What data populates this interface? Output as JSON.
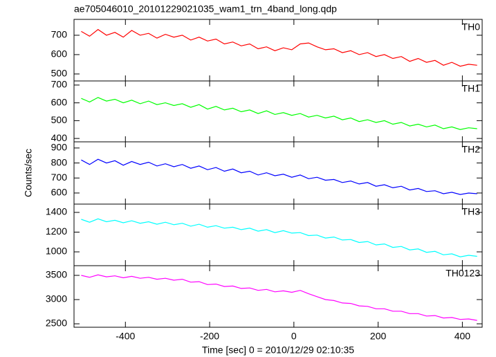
{
  "chart_data": {
    "type": "line",
    "title": "ae705046010_20101229021035_wam1_trn_4band_long.qdp",
    "xlabel": "Time [sec] 0 = 2010/12/29 02:10:35",
    "ylabel": "Counts/sec",
    "xlim": [
      -522,
      447
    ],
    "xticks": [
      -400,
      -200,
      0,
      200,
      400
    ],
    "x": [
      -505,
      -485,
      -465,
      -445,
      -425,
      -405,
      -385,
      -365,
      -345,
      -325,
      -305,
      -285,
      -265,
      -245,
      -225,
      -205,
      -185,
      -165,
      -145,
      -125,
      -105,
      -85,
      -65,
      -45,
      -25,
      -5,
      15,
      35,
      55,
      75,
      95,
      115,
      135,
      155,
      175,
      195,
      215,
      235,
      255,
      275,
      295,
      315,
      335,
      355,
      375,
      395,
      415,
      435
    ],
    "panels": [
      {
        "name": "TH0",
        "color": "#ff0000",
        "ylim": [
          464,
          782
        ],
        "yticks": [
          500,
          600,
          700
        ],
        "values": [
          720,
          695,
          730,
          700,
          715,
          690,
          725,
          700,
          710,
          685,
          705,
          690,
          700,
          675,
          690,
          670,
          680,
          655,
          665,
          645,
          655,
          630,
          640,
          620,
          635,
          625,
          655,
          660,
          640,
          625,
          630,
          610,
          620,
          600,
          610,
          590,
          600,
          580,
          590,
          565,
          580,
          560,
          570,
          545,
          560,
          540,
          550,
          545
        ]
      },
      {
        "name": "TH1",
        "color": "#00ff00",
        "ylim": [
          381,
          723
        ],
        "yticks": [
          400,
          500,
          600,
          700
        ],
        "values": [
          625,
          605,
          630,
          610,
          620,
          600,
          615,
          595,
          610,
          590,
          600,
          585,
          595,
          575,
          590,
          565,
          580,
          560,
          570,
          550,
          560,
          540,
          555,
          535,
          545,
          530,
          540,
          520,
          530,
          515,
          525,
          505,
          515,
          495,
          505,
          490,
          500,
          480,
          490,
          470,
          480,
          465,
          475,
          455,
          465,
          450,
          460,
          455
        ]
      },
      {
        "name": "TH2",
        "color": "#0000ff",
        "ylim": [
          526,
          941
        ],
        "yticks": [
          600,
          700,
          800,
          900
        ],
        "values": [
          820,
          790,
          825,
          800,
          815,
          785,
          810,
          790,
          805,
          780,
          795,
          775,
          790,
          765,
          780,
          755,
          770,
          745,
          760,
          735,
          745,
          720,
          735,
          715,
          725,
          705,
          720,
          695,
          705,
          685,
          690,
          670,
          680,
          660,
          670,
          645,
          655,
          635,
          645,
          620,
          630,
          610,
          615,
          595,
          605,
          590,
          600,
          595
        ]
      },
      {
        "name": "TH3",
        "color": "#00ffff",
        "ylim": [
          860,
          1484
        ],
        "yticks": [
          1000,
          1200,
          1400
        ],
        "values": [
          1330,
          1300,
          1335,
          1305,
          1320,
          1295,
          1315,
          1290,
          1305,
          1280,
          1300,
          1275,
          1290,
          1260,
          1280,
          1250,
          1265,
          1240,
          1250,
          1225,
          1240,
          1210,
          1225,
          1195,
          1215,
          1190,
          1195,
          1165,
          1170,
          1140,
          1150,
          1120,
          1125,
          1095,
          1105,
          1070,
          1080,
          1045,
          1055,
          1020,
          1030,
          995,
          1005,
          970,
          980,
          950,
          965,
          955
        ]
      },
      {
        "name": "TH0123",
        "color": "#ff00ff",
        "ylim": [
          2429,
          3700
        ],
        "yticks": [
          2500,
          3000,
          3500
        ],
        "values": [
          3500,
          3460,
          3510,
          3470,
          3490,
          3450,
          3480,
          3440,
          3460,
          3420,
          3440,
          3400,
          3420,
          3360,
          3370,
          3310,
          3320,
          3270,
          3280,
          3230,
          3240,
          3190,
          3210,
          3160,
          3180,
          3150,
          3190,
          3120,
          3060,
          3000,
          2980,
          2930,
          2920,
          2870,
          2860,
          2810,
          2810,
          2760,
          2760,
          2710,
          2710,
          2660,
          2670,
          2620,
          2630,
          2590,
          2600,
          2570
        ]
      }
    ]
  }
}
